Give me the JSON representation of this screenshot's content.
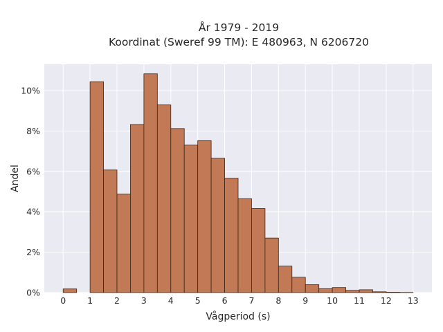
{
  "chart_data": {
    "type": "bar",
    "title": [
      "År 1979 - 2019",
      "Koordinat (Sweref 99 TM): E 480963, N 6206720"
    ],
    "xlabel": "Vågperiod (s)",
    "ylabel": "Andel",
    "bin_width": 0.5,
    "bin_starts": [
      0,
      0.5,
      1,
      1.5,
      2,
      2.5,
      3,
      3.5,
      4,
      4.5,
      5,
      5.5,
      6,
      6.5,
      7,
      7.5,
      8,
      8.5,
      9,
      9.5,
      10,
      10.5,
      11,
      11.5,
      12,
      12.5
    ],
    "values": [
      0.0018,
      0.0,
      0.1044,
      0.0607,
      0.0488,
      0.0832,
      0.1083,
      0.0929,
      0.0812,
      0.073,
      0.0752,
      0.0665,
      0.0566,
      0.0465,
      0.0416,
      0.027,
      0.0131,
      0.0076,
      0.0039,
      0.0019,
      0.0025,
      0.0011,
      0.0014,
      0.0004,
      0.0002,
      0.0001
    ],
    "xlim": [
      -0.7,
      13.7
    ],
    "ylim": [
      0,
      0.113
    ],
    "xticks": [
      0,
      1,
      2,
      3,
      4,
      5,
      6,
      7,
      8,
      9,
      10,
      11,
      12,
      13
    ],
    "xtick_labels": [
      "0",
      "1",
      "2",
      "3",
      "4",
      "5",
      "6",
      "7",
      "8",
      "9",
      "10",
      "11",
      "12",
      "13"
    ],
    "yticks": [
      0,
      0.02,
      0.04,
      0.06,
      0.08,
      0.1
    ],
    "ytick_labels": [
      "0%",
      "2%",
      "4%",
      "6%",
      "8%",
      "10%"
    ],
    "grid": true,
    "colors": {
      "bar_fill": "#c17a55",
      "bar_edge": "#3a2418",
      "plot_background": "#eaeaf2",
      "grid": "#ffffff"
    }
  }
}
